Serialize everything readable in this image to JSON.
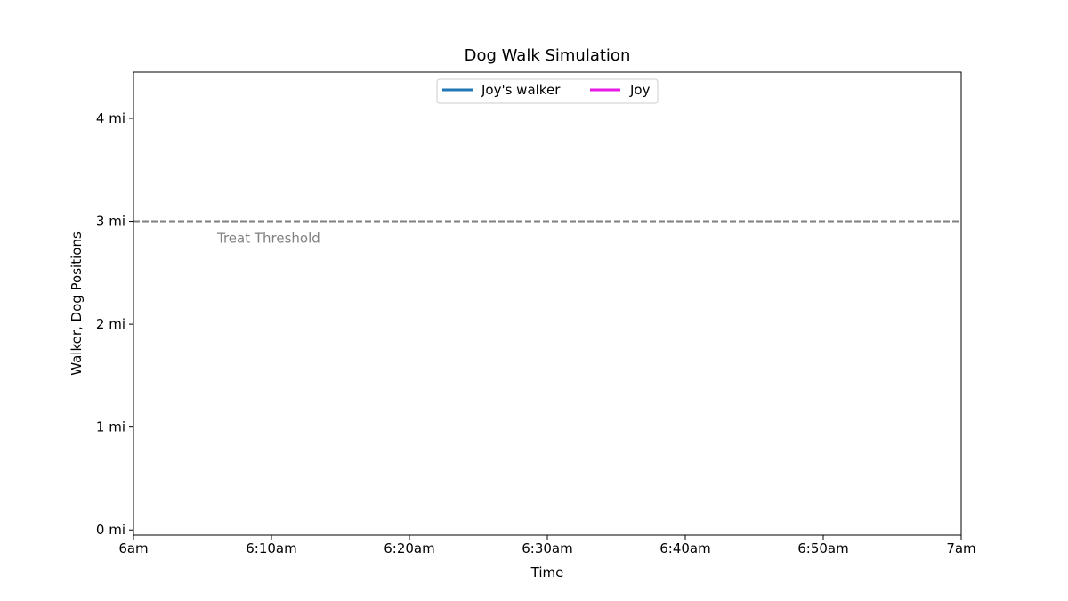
{
  "chart_data": {
    "type": "line",
    "title": "Dog Walk Simulation",
    "xlabel": "Time",
    "ylabel": "Walker, Dog Positions",
    "xlim": [
      0,
      60
    ],
    "ylim": [
      -0.05,
      4.45
    ],
    "x_ticks": [
      {
        "value": 0,
        "label": "6am"
      },
      {
        "value": 10,
        "label": "6:10am"
      },
      {
        "value": 20,
        "label": "6:20am"
      },
      {
        "value": 30,
        "label": "6:30am"
      },
      {
        "value": 40,
        "label": "6:40am"
      },
      {
        "value": 50,
        "label": "6:50am"
      },
      {
        "value": 60,
        "label": "7am"
      }
    ],
    "y_ticks": [
      {
        "value": 0,
        "label": "0 mi"
      },
      {
        "value": 1,
        "label": "1 mi"
      },
      {
        "value": 2,
        "label": "2 mi"
      },
      {
        "value": 3,
        "label": "3 mi"
      },
      {
        "value": 4,
        "label": "4 mi"
      }
    ],
    "series": [
      {
        "name": "Joy's walker",
        "color": "#1f77b4",
        "x": [],
        "y": []
      },
      {
        "name": "Joy",
        "color": "#e619e6",
        "x": [],
        "y": []
      }
    ],
    "threshold": {
      "value": 3,
      "label": "Treat Threshold",
      "x": 6,
      "color": "#808080"
    },
    "legend": "upper-center",
    "grid": false
  }
}
